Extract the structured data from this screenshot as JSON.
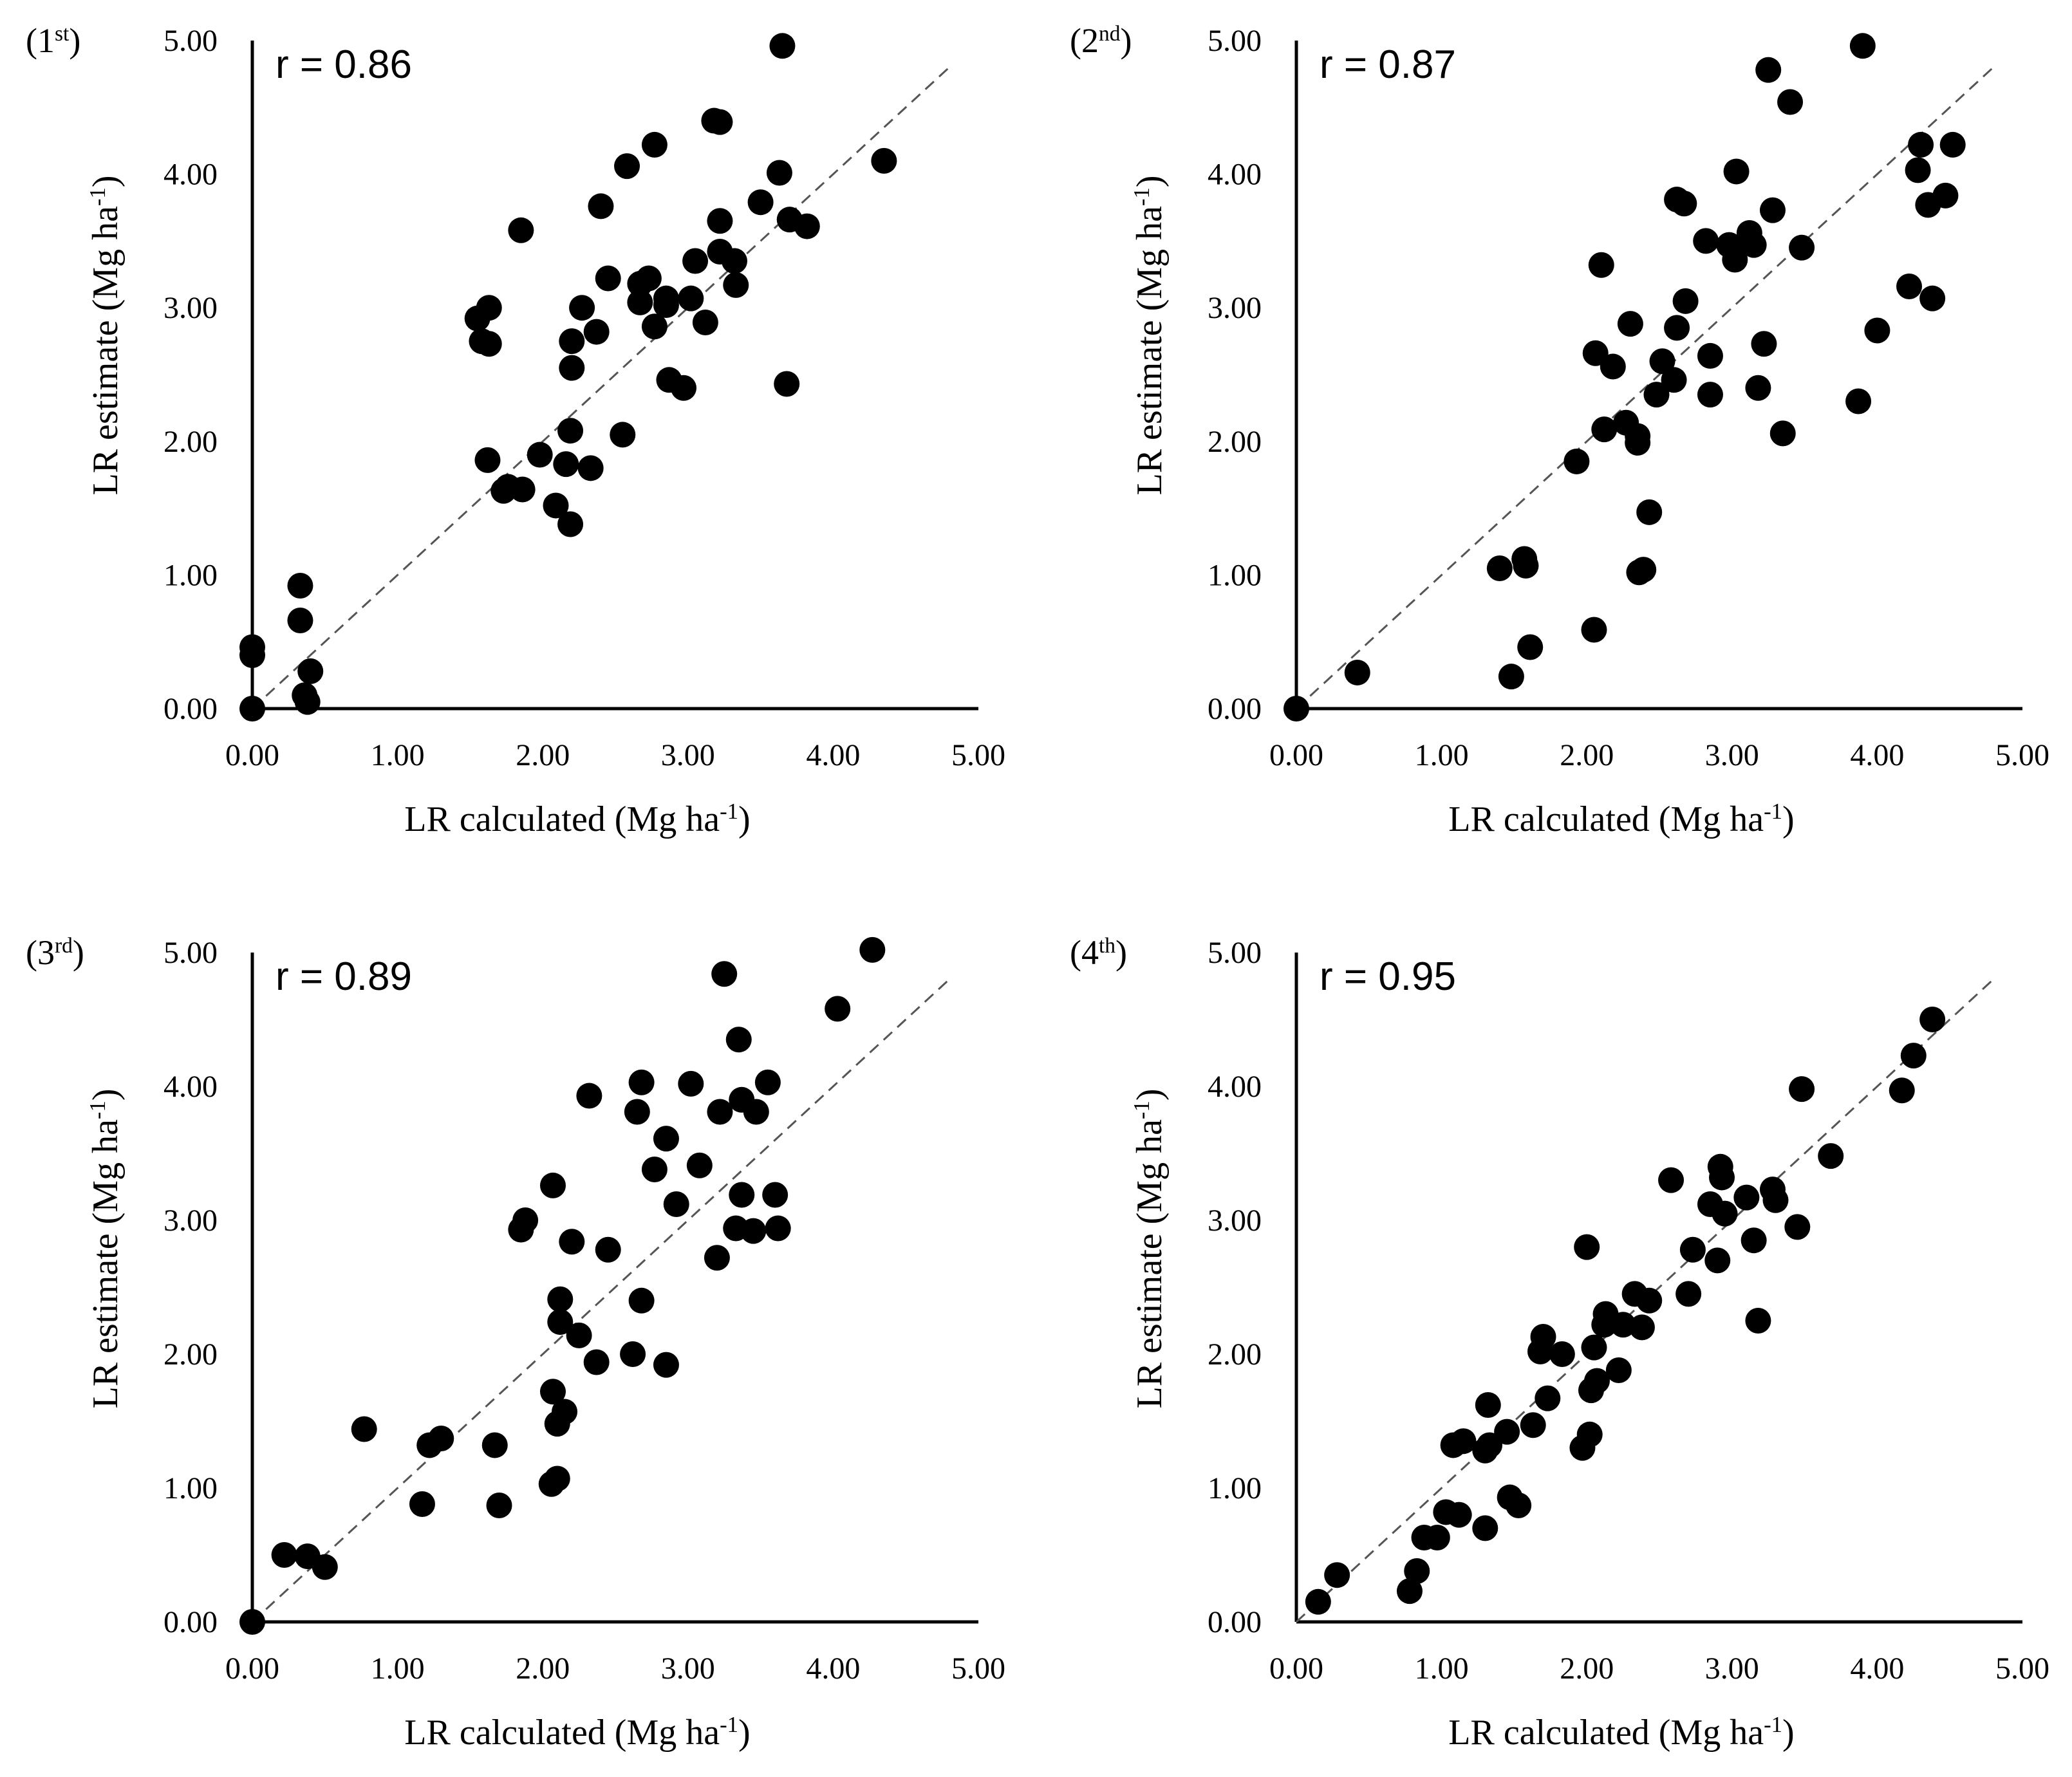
{
  "figure": {
    "marker_color": "#000000",
    "line_color": "#555555"
  },
  "chart_data": [
    {
      "type": "scatter",
      "panel_label": "(1st)",
      "panel_label_main": "(1",
      "panel_label_sup": "st",
      "panel_label_end": ")",
      "r_text": "r = 0.86",
      "xlabel": "LR calculated (Mg ha-1)",
      "xlabel_main": "LR calculated (Mg ha",
      "xlabel_sup": "-1",
      "xlabel_end": ")",
      "ylabel": "LR estimate (Mg ha-1)",
      "ylabel_main": "LR estimate (Mg ha",
      "ylabel_sup": "-1",
      "ylabel_end": ")",
      "xlim": [
        0,
        5
      ],
      "ylim": [
        0,
        5
      ],
      "ticks": [
        "0.00",
        "1.00",
        "2.00",
        "3.00",
        "4.00",
        "5.00"
      ],
      "reference_line": "1:1 dashed",
      "points": [
        [
          0.0,
          0.0
        ],
        [
          0.0,
          0.4
        ],
        [
          0.0,
          0.46
        ],
        [
          0.33,
          0.92
        ],
        [
          0.33,
          0.66
        ],
        [
          0.36,
          0.1
        ],
        [
          0.38,
          0.05
        ],
        [
          0.4,
          0.28
        ],
        [
          1.55,
          2.92
        ],
        [
          1.58,
          2.75
        ],
        [
          1.63,
          3.0
        ],
        [
          1.63,
          2.73
        ],
        [
          1.62,
          1.86
        ],
        [
          1.73,
          1.63
        ],
        [
          1.76,
          1.66
        ],
        [
          1.85,
          3.58
        ],
        [
          1.86,
          1.64
        ],
        [
          1.98,
          1.9
        ],
        [
          2.09,
          1.52
        ],
        [
          2.16,
          1.83
        ],
        [
          2.19,
          1.38
        ],
        [
          2.19,
          2.08
        ],
        [
          2.2,
          2.55
        ],
        [
          2.2,
          2.75
        ],
        [
          2.27,
          3.0
        ],
        [
          2.33,
          1.8
        ],
        [
          2.37,
          2.82
        ],
        [
          2.4,
          3.76
        ],
        [
          2.45,
          3.22
        ],
        [
          2.55,
          2.05
        ],
        [
          2.58,
          4.06
        ],
        [
          2.67,
          3.04
        ],
        [
          2.67,
          3.18
        ],
        [
          2.73,
          3.22
        ],
        [
          2.77,
          4.22
        ],
        [
          2.77,
          2.86
        ],
        [
          2.85,
          3.07
        ],
        [
          2.85,
          3.02
        ],
        [
          2.87,
          2.46
        ],
        [
          2.97,
          2.4
        ],
        [
          3.02,
          3.07
        ],
        [
          3.05,
          3.35
        ],
        [
          3.12,
          2.89
        ],
        [
          3.18,
          4.4
        ],
        [
          3.22,
          4.39
        ],
        [
          3.22,
          3.65
        ],
        [
          3.22,
          3.42
        ],
        [
          3.32,
          3.35
        ],
        [
          3.33,
          3.17
        ],
        [
          3.5,
          3.79
        ],
        [
          3.63,
          4.01
        ],
        [
          3.65,
          4.96
        ],
        [
          3.68,
          2.43
        ],
        [
          3.7,
          3.66
        ],
        [
          3.82,
          3.61
        ],
        [
          4.35,
          4.1
        ]
      ]
    },
    {
      "type": "scatter",
      "panel_label": "(2nd)",
      "panel_label_main": "(2",
      "panel_label_sup": "nd",
      "panel_label_end": ")",
      "r_text": "r = 0.87",
      "xlabel": "LR calculated (Mg ha-1)",
      "xlabel_main": "LR calculated (Mg ha",
      "xlabel_sup": "-1",
      "xlabel_end": ")",
      "ylabel": "LR estimate (Mg ha-1)",
      "ylabel_main": "LR estimate (Mg ha",
      "ylabel_sup": "-1",
      "ylabel_end": ")",
      "xlim": [
        0,
        5
      ],
      "ylim": [
        0,
        5
      ],
      "ticks": [
        "0.00",
        "1.00",
        "2.00",
        "3.00",
        "4.00",
        "5.00"
      ],
      "reference_line": "1:1 dashed",
      "points": [
        [
          0.0,
          0.0
        ],
        [
          0.42,
          0.27
        ],
        [
          1.4,
          1.05
        ],
        [
          1.48,
          0.24
        ],
        [
          1.57,
          1.12
        ],
        [
          1.58,
          1.07
        ],
        [
          1.61,
          0.46
        ],
        [
          1.93,
          1.85
        ],
        [
          2.05,
          0.59
        ],
        [
          2.06,
          2.66
        ],
        [
          2.1,
          3.32
        ],
        [
          2.12,
          2.09
        ],
        [
          2.18,
          2.56
        ],
        [
          2.27,
          2.14
        ],
        [
          2.3,
          2.88
        ],
        [
          2.35,
          2.04
        ],
        [
          2.35,
          1.99
        ],
        [
          2.36,
          1.02
        ],
        [
          2.39,
          1.04
        ],
        [
          2.43,
          1.47
        ],
        [
          2.48,
          2.35
        ],
        [
          2.52,
          2.6
        ],
        [
          2.6,
          2.46
        ],
        [
          2.62,
          3.81
        ],
        [
          2.62,
          2.85
        ],
        [
          2.67,
          3.78
        ],
        [
          2.68,
          3.05
        ],
        [
          2.82,
          3.5
        ],
        [
          2.85,
          2.64
        ],
        [
          2.85,
          2.35
        ],
        [
          2.98,
          3.47
        ],
        [
          3.02,
          3.36
        ],
        [
          3.03,
          4.02
        ],
        [
          3.12,
          3.56
        ],
        [
          3.15,
          3.47
        ],
        [
          3.18,
          2.4
        ],
        [
          3.22,
          2.73
        ],
        [
          3.25,
          4.78
        ],
        [
          3.28,
          3.73
        ],
        [
          3.35,
          2.06
        ],
        [
          3.4,
          4.54
        ],
        [
          3.48,
          3.45
        ],
        [
          3.87,
          2.3
        ],
        [
          3.9,
          4.96
        ],
        [
          4.0,
          2.83
        ],
        [
          4.22,
          3.16
        ],
        [
          4.28,
          4.03
        ],
        [
          4.3,
          4.22
        ],
        [
          4.35,
          3.77
        ],
        [
          4.38,
          3.07
        ],
        [
          4.47,
          3.84
        ],
        [
          4.52,
          4.22
        ]
      ]
    },
    {
      "type": "scatter",
      "panel_label": "(3rd)",
      "panel_label_main": "(3",
      "panel_label_sup": "rd",
      "panel_label_end": ")",
      "r_text": "r = 0.89",
      "xlabel": "LR calculated (Mg ha-1)",
      "xlabel_main": "LR calculated (Mg ha",
      "xlabel_sup": "-1",
      "xlabel_end": ")",
      "ylabel": "LR estimate (Mg ha-1)",
      "ylabel_main": "LR estimate (Mg ha",
      "ylabel_sup": "-1",
      "ylabel_end": ")",
      "xlim": [
        0,
        5
      ],
      "ylim": [
        0,
        5
      ],
      "ticks": [
        "0.00",
        "1.00",
        "2.00",
        "3.00",
        "4.00",
        "5.00"
      ],
      "reference_line": "1:1 dashed",
      "points": [
        [
          0.0,
          0.0
        ],
        [
          0.22,
          0.5
        ],
        [
          0.38,
          0.49
        ],
        [
          0.5,
          0.41
        ],
        [
          0.77,
          1.44
        ],
        [
          1.17,
          0.88
        ],
        [
          1.22,
          1.32
        ],
        [
          1.3,
          1.37
        ],
        [
          1.67,
          1.32
        ],
        [
          1.7,
          0.87
        ],
        [
          1.85,
          2.93
        ],
        [
          1.88,
          3.0
        ],
        [
          2.06,
          1.03
        ],
        [
          2.07,
          1.72
        ],
        [
          2.07,
          3.26
        ],
        [
          2.1,
          1.07
        ],
        [
          2.1,
          1.48
        ],
        [
          2.12,
          2.41
        ],
        [
          2.12,
          2.24
        ],
        [
          2.15,
          1.57
        ],
        [
          2.2,
          2.84
        ],
        [
          2.25,
          2.14
        ],
        [
          2.32,
          3.93
        ],
        [
          2.37,
          1.94
        ],
        [
          2.45,
          2.78
        ],
        [
          2.62,
          2.0
        ],
        [
          2.65,
          3.81
        ],
        [
          2.68,
          4.03
        ],
        [
          2.68,
          2.4
        ],
        [
          2.77,
          3.38
        ],
        [
          2.85,
          3.61
        ],
        [
          2.85,
          1.92
        ],
        [
          2.92,
          3.12
        ],
        [
          3.02,
          4.02
        ],
        [
          3.08,
          3.41
        ],
        [
          3.2,
          2.72
        ],
        [
          3.22,
          3.81
        ],
        [
          3.25,
          4.84
        ],
        [
          3.33,
          2.94
        ],
        [
          3.35,
          4.35
        ],
        [
          3.37,
          3.19
        ],
        [
          3.37,
          3.9
        ],
        [
          3.45,
          2.92
        ],
        [
          3.47,
          3.81
        ],
        [
          3.55,
          4.03
        ],
        [
          3.6,
          3.19
        ],
        [
          3.62,
          2.94
        ],
        [
          4.03,
          4.58
        ],
        [
          4.27,
          5.02
        ]
      ]
    },
    {
      "type": "scatter",
      "panel_label": "(4th)",
      "panel_label_main": "(4",
      "panel_label_sup": "th",
      "panel_label_end": ")",
      "r_text": "r = 0.95",
      "xlabel": "LR calculated (Mg ha-1)",
      "xlabel_main": "LR calculated (Mg ha",
      "xlabel_sup": "-1",
      "xlabel_end": ")",
      "ylabel": "LR estimate (Mg ha-1)",
      "ylabel_main": "LR estimate (Mg ha",
      "ylabel_sup": "-1",
      "ylabel_end": ")",
      "xlim": [
        0,
        5
      ],
      "ylim": [
        0,
        5
      ],
      "ticks": [
        "0.00",
        "1.00",
        "2.00",
        "3.00",
        "4.00",
        "5.00"
      ],
      "reference_line": "1:1 dashed",
      "points": [
        [
          0.15,
          0.15
        ],
        [
          0.28,
          0.35
        ],
        [
          0.78,
          0.23
        ],
        [
          0.83,
          0.38
        ],
        [
          0.88,
          0.63
        ],
        [
          0.97,
          0.63
        ],
        [
          1.03,
          0.82
        ],
        [
          1.08,
          1.32
        ],
        [
          1.12,
          0.8
        ],
        [
          1.15,
          1.35
        ],
        [
          1.3,
          0.7
        ],
        [
          1.3,
          1.28
        ],
        [
          1.32,
          1.62
        ],
        [
          1.33,
          1.32
        ],
        [
          1.45,
          1.42
        ],
        [
          1.47,
          0.93
        ],
        [
          1.53,
          0.87
        ],
        [
          1.63,
          1.47
        ],
        [
          1.68,
          2.02
        ],
        [
          1.7,
          2.13
        ],
        [
          1.73,
          1.67
        ],
        [
          1.83,
          2.0
        ],
        [
          1.97,
          1.3
        ],
        [
          2.0,
          2.8
        ],
        [
          2.02,
          1.4
        ],
        [
          2.03,
          1.73
        ],
        [
          2.05,
          2.05
        ],
        [
          2.07,
          1.8
        ],
        [
          2.12,
          2.22
        ],
        [
          2.13,
          2.3
        ],
        [
          2.22,
          1.88
        ],
        [
          2.25,
          2.22
        ],
        [
          2.33,
          2.45
        ],
        [
          2.38,
          2.2
        ],
        [
          2.43,
          2.4
        ],
        [
          2.58,
          3.3
        ],
        [
          2.7,
          2.45
        ],
        [
          2.73,
          2.78
        ],
        [
          2.85,
          3.12
        ],
        [
          2.9,
          2.7
        ],
        [
          2.92,
          3.4
        ],
        [
          2.93,
          3.32
        ],
        [
          2.95,
          3.05
        ],
        [
          3.1,
          3.17
        ],
        [
          3.15,
          2.85
        ],
        [
          3.18,
          2.25
        ],
        [
          3.28,
          3.23
        ],
        [
          3.3,
          3.15
        ],
        [
          3.45,
          2.95
        ],
        [
          3.48,
          3.98
        ],
        [
          3.68,
          3.48
        ],
        [
          4.17,
          3.97
        ],
        [
          4.25,
          4.23
        ],
        [
          4.38,
          4.5
        ]
      ]
    }
  ]
}
